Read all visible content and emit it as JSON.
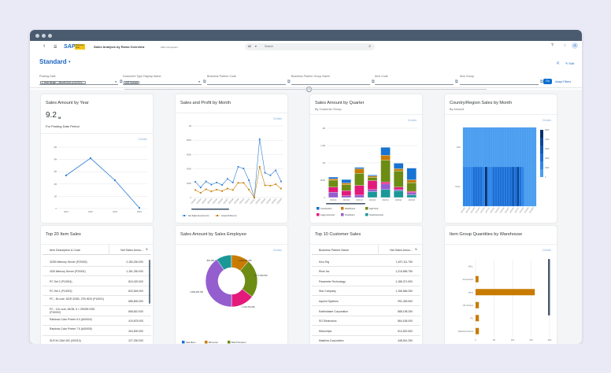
{
  "header": {
    "app_name": "Sales Analysis by Rows Overview",
    "company": "OEC Computers",
    "search_scope": "All",
    "search_placeholder": "Search",
    "avatar": "JS",
    "logo": "SAP Business One"
  },
  "variant": {
    "name": "Standard",
    "edit_label": "Edit"
  },
  "filters": [
    {
      "label": "Posting Date",
      "token": "1 Year Begin... Month End (1/1/2021..."
    },
    {
      "label": "Document Type Display Name",
      "token": "A/R Invoice"
    },
    {
      "label": "Business Partner Code",
      "token": ""
    },
    {
      "label": "Business Partner Group Name",
      "token": ""
    },
    {
      "label": "Item Code",
      "token": ""
    },
    {
      "label": "Item Group",
      "token": ""
    }
  ],
  "filter_actions": {
    "go": "Go",
    "adapt": "Adapt Filters"
  },
  "details_label": "Details",
  "cards": {
    "sales_year": {
      "title": "Sales Amount by Year",
      "kpi": "9.2",
      "kpi_unit": "M",
      "subtitle": "For Posting Date Period"
    },
    "sales_profit": {
      "title": "Sales and Profit by Month"
    },
    "sales_quarter": {
      "title": "Sales Amount by Quarter",
      "subtitle": "By Customer Group"
    },
    "country": {
      "title": "Country/Region Sales by Month",
      "subtitle": "By Amount"
    },
    "top_items": {
      "title": "Top 20 Item Sales",
      "columns": [
        "Item Description & Code",
        "Net Sales Amou..."
      ],
      "rows": [
        [
          "32GB Memory Server (P20002)",
          "2,183,250.000"
        ],
        [
          "4GB Memory Server (P20001)",
          "1,181,250.000"
        ],
        [
          "PC Set 2 (P10004)",
          "824,020.000"
        ],
        [
          "PC Set 1 (P10003)",
          "820,545.000"
        ],
        [
          "PC - 8x core, DDR 32GB, 2TB HDD (P10001)",
          "685,800.000"
        ],
        [
          "PC - 12x core, 64GB, 5 × 250GB SSD (P10002)",
          "668,810.000"
        ],
        [
          "Rainbow Color Printer 5.0 (A00004)",
          "419,875.000"
        ],
        [
          "Rainbow Color Printer 7.5 (A00005)",
          "264,500.000"
        ],
        [
          "SLR M-CAM 40C (I00010)",
          "227,250.000"
        ]
      ]
    },
    "employee": {
      "title": "Sales Amount by Sales Employee"
    },
    "top_customers": {
      "title": "Top 10 Customer Sales",
      "columns": [
        "Business Partner Name",
        "Net Sales Amou..."
      ],
      "rows": [
        [
          "Kivo-Teg",
          "1,497,111.750"
        ],
        [
          "River Inc",
          "1,215,896.750"
        ],
        [
          "Parameter Technology",
          "1,186,371.500"
        ],
        [
          "Star Company",
          "1,156,566.250"
        ],
        [
          "Aquent Systems",
          "991,459.500"
        ],
        [
          "Earthshaker Corporation",
          "888,198.250"
        ],
        [
          "SG Electronics",
          "864,165.000"
        ],
        [
          "Microchips",
          "612,822.500"
        ],
        [
          "Mashina Corporation",
          "448,541.250"
        ]
      ]
    },
    "warehouse": {
      "title": "Item Group Quantities by Warehouse"
    }
  },
  "chart_data": [
    {
      "id": "year",
      "type": "line",
      "categories": [
        "2021",
        "2022",
        "2023",
        "2024"
      ],
      "values": [
        2700000,
        4100000,
        2300000,
        50000
      ],
      "yticks": [
        "0",
        "1M",
        "2M",
        "3M",
        "4M",
        "5M"
      ],
      "ylim": [
        0,
        5000000
      ],
      "color": "#2b7cd3"
    },
    {
      "id": "month",
      "type": "line",
      "categories": [
        "2021/01",
        "2021/02",
        "2021/03",
        "2021/04",
        "2021/05",
        "2021/06",
        "2021/07",
        "2021/08",
        "2021/09",
        "2021/10",
        "2021/11",
        "2021/12",
        "2022/01",
        "2022/02",
        "2022/03",
        "2022/04",
        "2022/05"
      ],
      "series": [
        {
          "name": "Net Sales Amount (LC)",
          "color": "#2b7cd3",
          "values": [
            220,
            140,
            225,
            180,
            210,
            175,
            260,
            210,
            430,
            405,
            240,
            0,
            815,
            345,
            310,
            380,
            225
          ]
        },
        {
          "name": "Gross Profit (LC)",
          "color": "#c87b00",
          "values": [
            105,
            65,
            115,
            85,
            110,
            90,
            125,
            105,
            205,
            205,
            110,
            0,
            430,
            170,
            165,
            185,
            125
          ]
        }
      ],
      "unit": "K",
      "yticks": [
        "0",
        "200K",
        "400K",
        "600K",
        "800K",
        "1M"
      ],
      "ylim": [
        0,
        1000
      ]
    },
    {
      "id": "quarter",
      "type": "bar",
      "stacked": true,
      "categories": [
        "2021Q1",
        "2021Q2",
        "2021Q3",
        "2021Q4",
        "2022Q1",
        "2022Q2",
        "2022Q3"
      ],
      "series": [
        {
          "name": "Small Accounts",
          "color": "#1a9898",
          "values": [
            0,
            0,
            0,
            170,
            230,
            200,
            80
          ]
        },
        {
          "name": "Production",
          "color": "#945ecf",
          "values": [
            150,
            50,
            70,
            60,
            160,
            30,
            60
          ]
        },
        {
          "name": "Large Accounts",
          "color": "#e3197b",
          "values": [
            150,
            150,
            280,
            260,
            60,
            70,
            40
          ]
        },
        {
          "name": "High Tech",
          "color": "#6c8c14",
          "values": [
            200,
            170,
            350,
            90,
            630,
            470,
            250
          ]
        },
        {
          "name": "Distributors",
          "color": "#c87b00",
          "values": [
            40,
            50,
            130,
            40,
            140,
            60,
            80
          ]
        },
        {
          "name": "Construction",
          "color": "#1873d3",
          "values": [
            50,
            100,
            40,
            30,
            230,
            160,
            340
          ]
        }
      ],
      "legend_order": [
        "Construction",
        "Distributors",
        "High Tech",
        "Large Accounts",
        "Production",
        "Small Accounts"
      ],
      "unit": "K",
      "yticks": [
        "0",
        "500K",
        "1M",
        "1.5M",
        "2M"
      ],
      "ylim": [
        0,
        2000
      ]
    },
    {
      "id": "country",
      "type": "heatmap",
      "rows": [
        "USA",
        "NULL"
      ],
      "unit": "K",
      "values": [
        [
          60,
          60,
          60,
          60,
          60,
          60,
          60,
          60,
          60,
          60,
          60,
          60,
          60,
          60,
          60,
          60,
          60,
          60,
          60,
          60,
          60,
          60,
          60,
          60,
          60,
          60,
          60,
          60,
          60,
          60
        ],
        [
          150,
          250,
          180,
          200,
          320,
          330,
          300,
          320,
          250,
          900,
          180,
          150,
          330,
          400,
          350,
          380,
          330,
          300,
          340,
          370,
          600,
          350,
          700,
          300,
          120,
          60,
          60,
          60,
          60,
          60
        ]
      ],
      "xlabels": [
        "2021/01",
        "2021/03",
        "2021/05",
        "2021/07",
        "2021/09",
        "2021/11",
        "2022/01",
        "2022/03",
        "2022/05",
        "2022/07",
        "2022/09",
        "2022/11",
        "2023/01",
        "2023/03",
        "2023/05"
      ],
      "scale_ticks": [
        "0",
        "180K",
        "360K",
        "540K",
        "720K",
        "900K"
      ],
      "scale_colors": [
        "#4c9ef0",
        "#2f86e8",
        "#1c6fd6",
        "#1259b8",
        "#0b4596",
        "#06306b"
      ]
    },
    {
      "id": "employee",
      "type": "pie",
      "donut": true,
      "slices": [
        {
          "name": "Kate Mann",
          "value": 864196250,
          "label": "864,196,250",
          "color": "#1a9898"
        },
        {
          "name": "Bill Levine",
          "value": 1023671250,
          "label": "1,023,671,250",
          "color": "#c87b00"
        },
        {
          "name": "Brad Thompson",
          "value": 2177840500,
          "label": "2,177,840,500",
          "color": "#6c8c14"
        },
        {
          "name": "",
          "value": 1310706250,
          "label": "1,310,706,250",
          "color": "#e3197b"
        },
        {
          "name": "",
          "value": 3659405750,
          "label": "3,659,405,750",
          "color": "#945ecf"
        }
      ],
      "legend": [
        {
          "name": "Kate Mann",
          "color": "#1873d3"
        },
        {
          "name": "Bill Levine",
          "color": "#c87b00"
        },
        {
          "name": "Brad Thompson",
          "color": "#6c8c14"
        }
      ]
    },
    {
      "id": "warehouse",
      "type": "bar",
      "orientation": "horizontal",
      "categories": [
        "NULL",
        "Accessories",
        "Items",
        "J.B. Printers",
        "PC",
        "Rainbow Printers"
      ],
      "values": [
        0,
        800,
        16000,
        900,
        900,
        900
      ],
      "xticks": [
        "0",
        "5K",
        "10K",
        "15K",
        "20K"
      ],
      "xlim": [
        0,
        20000
      ],
      "color": "#c87b00"
    }
  ]
}
